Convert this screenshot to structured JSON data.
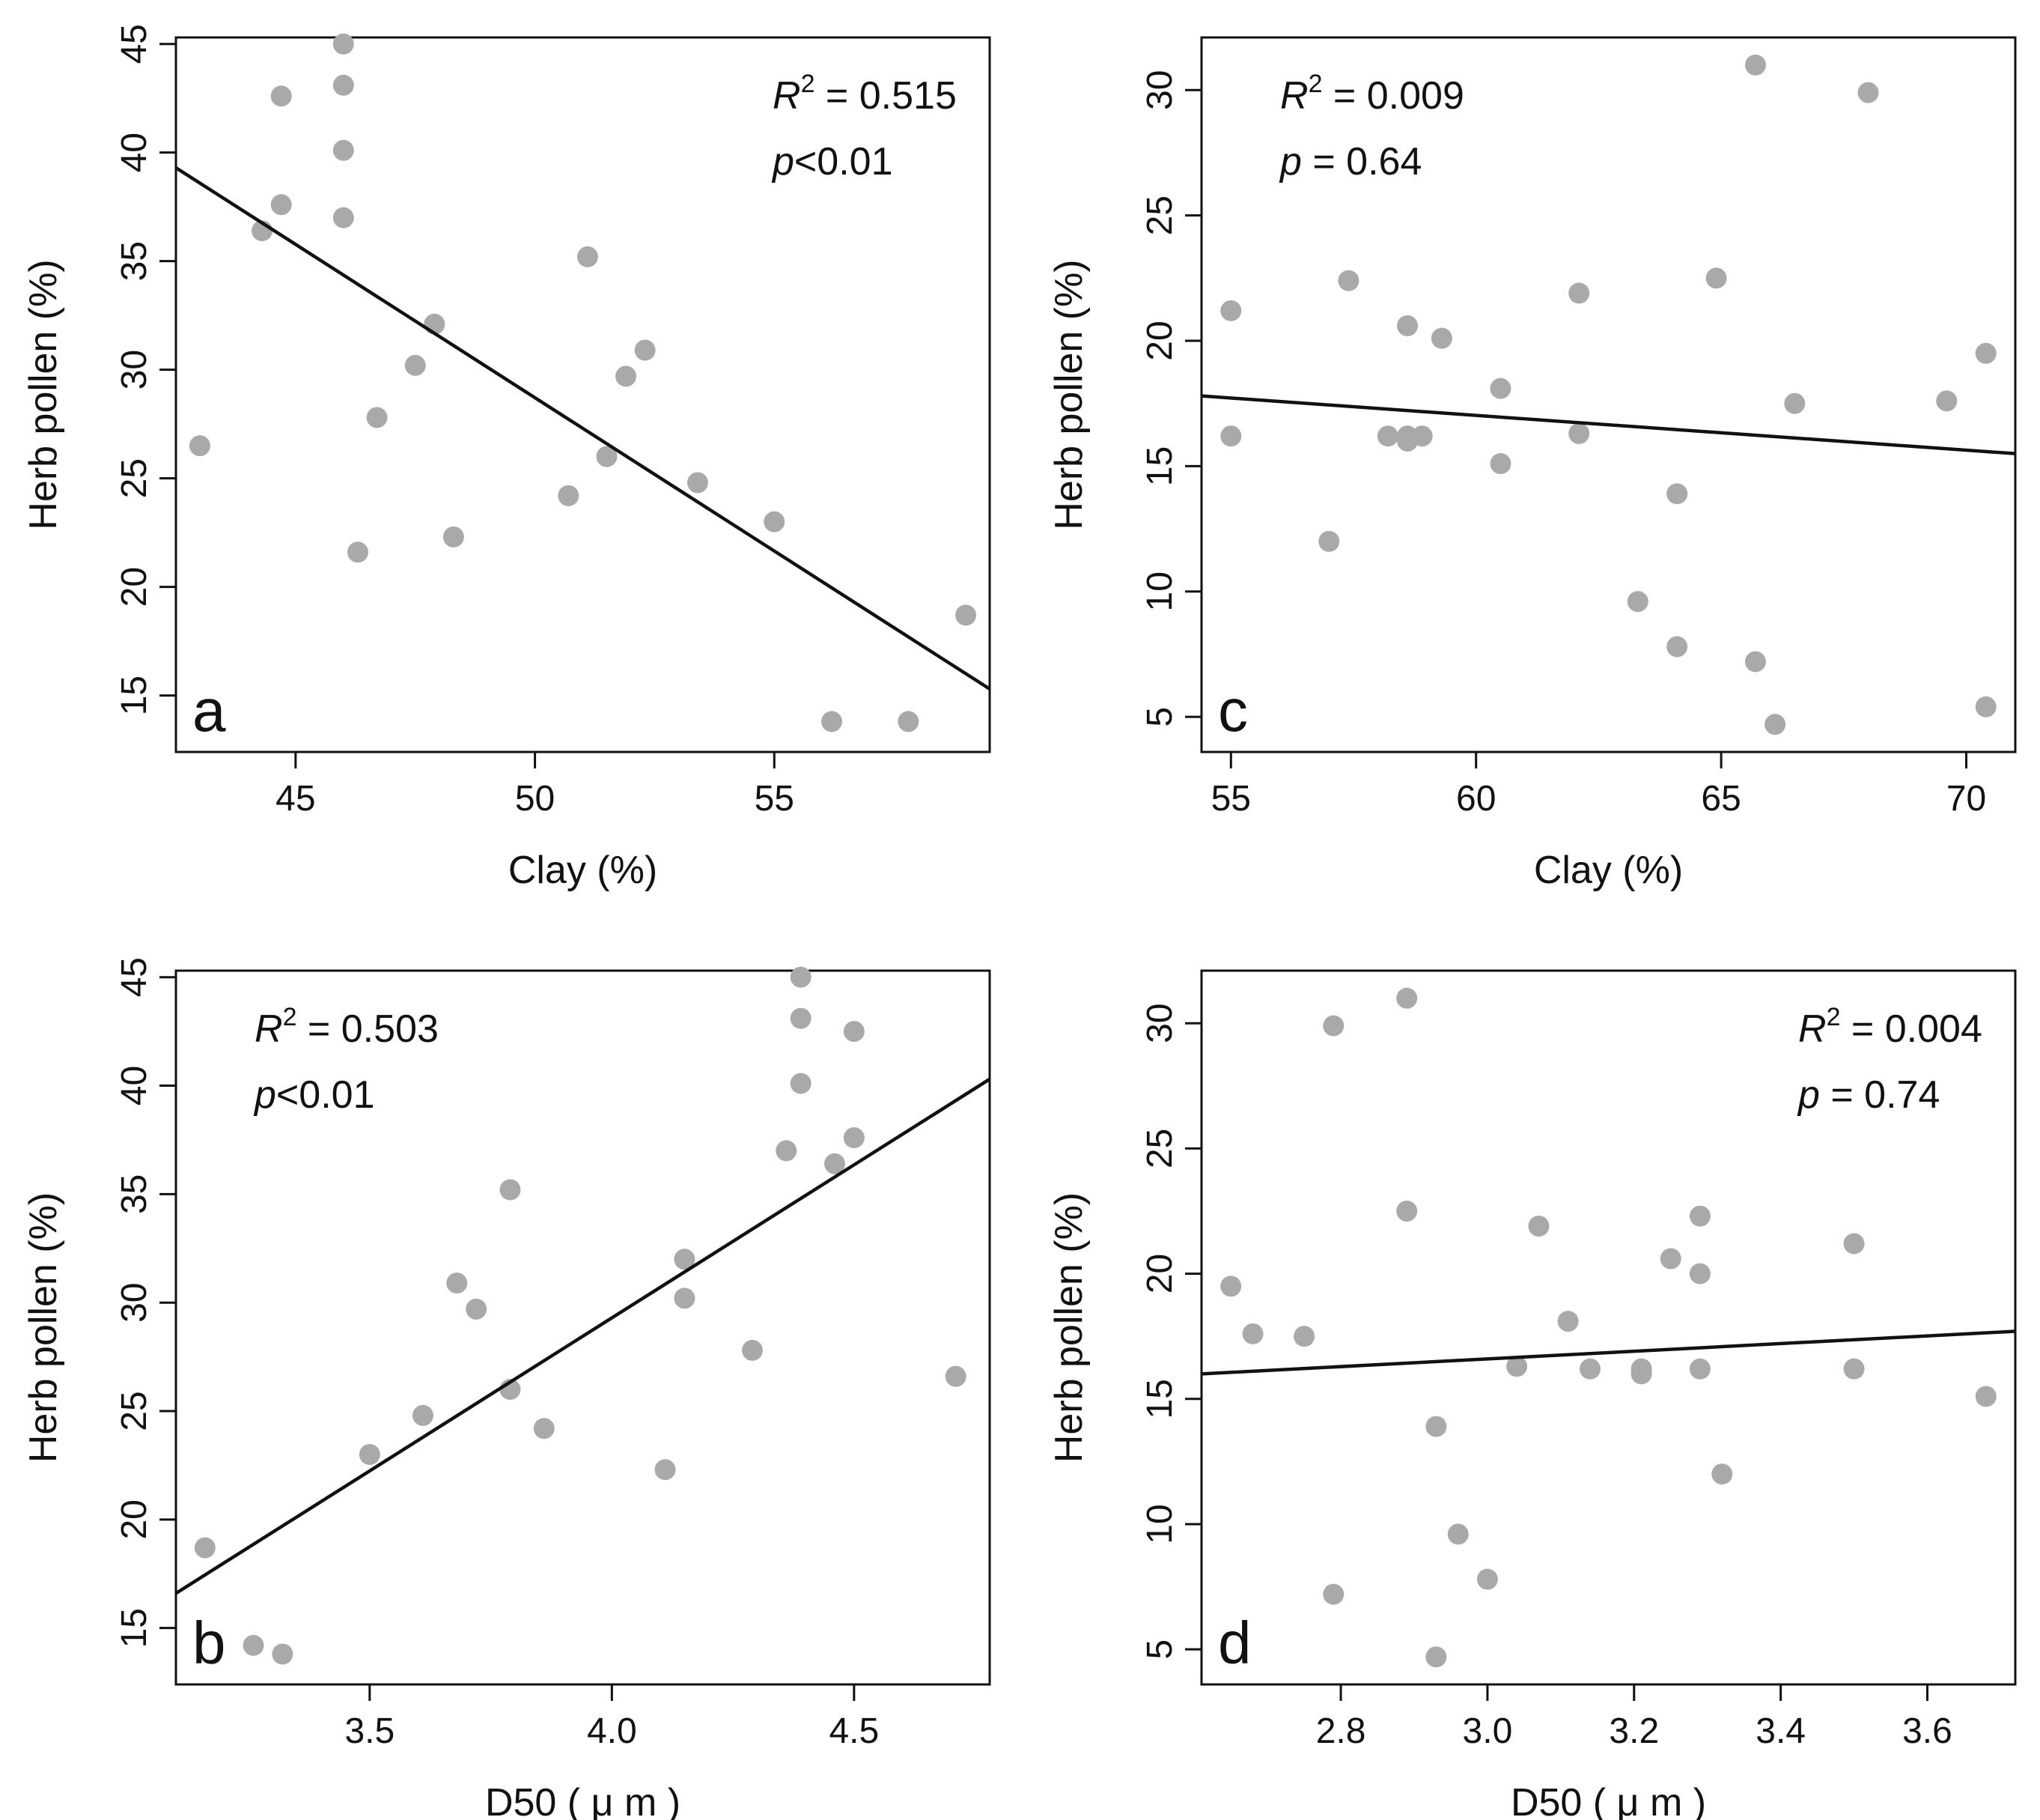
{
  "chart_data": [
    {
      "id": "a",
      "type": "scatter",
      "panel_label": "a",
      "xlabel": "Clay (%)",
      "ylabel": "Herb pollen (%)",
      "xlim": [
        42.5,
        59.5
      ],
      "ylim": [
        12.4,
        45.3
      ],
      "xticks": [
        45,
        50,
        55
      ],
      "yticks": [
        15,
        20,
        25,
        30,
        35,
        40,
        45
      ],
      "xtick_labels": [
        "45",
        "50",
        "55"
      ],
      "ytick_labels": [
        "15",
        "20",
        "25",
        "30",
        "35",
        "40",
        "45"
      ],
      "stats": {
        "r2_symbol": "R",
        "r2_sup": "2",
        "r2_eq": " = ",
        "r2_value": "0.515",
        "p_symbol": "p",
        "p_text": "<0.01"
      },
      "stats_placement": "top-right",
      "regression": {
        "x": [
          42.5,
          59.5
        ],
        "y": [
          39.3,
          15.3
        ]
      },
      "points": {
        "x": [
          43.0,
          44.3,
          44.7,
          44.7,
          46.0,
          46.0,
          46.0,
          46.0,
          46.3,
          46.7,
          47.5,
          47.9,
          48.3,
          50.7,
          51.1,
          51.5,
          51.9,
          52.3,
          53.4,
          55.0,
          56.2,
          57.8,
          59.0
        ],
        "y": [
          26.5,
          36.4,
          42.6,
          37.6,
          45.0,
          43.1,
          40.1,
          37.0,
          21.6,
          27.8,
          30.2,
          32.1,
          22.3,
          24.2,
          35.2,
          26.0,
          29.7,
          30.9,
          24.8,
          23.0,
          13.8,
          13.8,
          18.7
        ]
      }
    },
    {
      "id": "b",
      "type": "scatter",
      "panel_label": "b",
      "xlabel": "D50 ( μ m )",
      "ylabel": "Herb pollen (%)",
      "xlim": [
        3.1,
        4.78
      ],
      "ylim": [
        12.4,
        45.3
      ],
      "xticks": [
        3.5,
        4.0,
        4.5
      ],
      "yticks": [
        15,
        20,
        25,
        30,
        35,
        40,
        45
      ],
      "xtick_labels": [
        "3.5",
        "4.0",
        "4.5"
      ],
      "ytick_labels": [
        "15",
        "20",
        "25",
        "30",
        "35",
        "40",
        "45"
      ],
      "stats": {
        "r2_symbol": "R",
        "r2_sup": "2",
        "r2_eq": " = ",
        "r2_value": "0.503",
        "p_symbol": "p",
        "p_text": "<0.01"
      },
      "stats_placement": "top-left",
      "regression": {
        "x": [
          3.1,
          4.78
        ],
        "y": [
          16.6,
          40.3
        ]
      },
      "points": {
        "x": [
          3.16,
          3.26,
          3.32,
          3.5,
          3.61,
          3.68,
          3.72,
          3.79,
          3.79,
          3.86,
          4.11,
          4.15,
          4.15,
          4.29,
          4.36,
          4.39,
          4.39,
          4.39,
          4.46,
          4.5,
          4.5,
          4.71
        ],
        "y": [
          18.7,
          14.2,
          13.8,
          23.0,
          24.8,
          30.9,
          29.7,
          35.2,
          26.0,
          24.2,
          22.3,
          32.0,
          30.2,
          27.8,
          37.0,
          45.0,
          43.1,
          40.1,
          36.4,
          42.5,
          37.6,
          26.6
        ]
      }
    },
    {
      "id": "c",
      "type": "scatter",
      "panel_label": "c",
      "xlabel": "Clay (%)",
      "ylabel": "Herb pollen (%)",
      "xlim": [
        54.4,
        71.0
      ],
      "ylim": [
        3.6,
        32.1
      ],
      "xticks": [
        55,
        60,
        65,
        70
      ],
      "yticks": [
        5,
        10,
        15,
        20,
        25,
        30
      ],
      "xtick_labels": [
        "55",
        "60",
        "65",
        "70"
      ],
      "ytick_labels": [
        "5",
        "10",
        "15",
        "20",
        "25",
        "30"
      ],
      "stats": {
        "r2_symbol": "R",
        "r2_sup": "2",
        "r2_eq": " = ",
        "r2_value": "0.009",
        "p_symbol": "p",
        "p_text": " = 0.64"
      },
      "stats_placement": "top-left",
      "regression": {
        "x": [
          54.4,
          71.0
        ],
        "y": [
          17.8,
          15.5
        ]
      },
      "points": {
        "x": [
          55.0,
          55.0,
          57.0,
          57.4,
          58.2,
          58.6,
          58.6,
          58.6,
          58.9,
          59.3,
          60.5,
          60.5,
          62.1,
          62.1,
          63.3,
          64.1,
          64.1,
          64.9,
          65.7,
          65.7,
          66.1,
          66.5,
          68.0,
          69.6,
          70.4,
          70.4
        ],
        "y": [
          21.2,
          16.2,
          12.0,
          22.4,
          16.2,
          20.6,
          16.2,
          16.0,
          16.2,
          20.1,
          18.1,
          15.1,
          21.9,
          16.3,
          9.6,
          13.9,
          7.8,
          22.5,
          31.0,
          7.2,
          4.7,
          17.5,
          29.9,
          17.6,
          19.5,
          5.4
        ]
      }
    },
    {
      "id": "d",
      "type": "scatter",
      "panel_label": "d",
      "xlabel": "D50 ( μ m )",
      "ylabel": "Herb pollen (%)",
      "xlim": [
        2.61,
        3.72
      ],
      "ylim": [
        3.6,
        32.1
      ],
      "xticks": [
        2.8,
        3.0,
        3.2,
        3.4,
        3.6
      ],
      "yticks": [
        5,
        10,
        15,
        20,
        25,
        30
      ],
      "xtick_labels": [
        "2.8",
        "3.0",
        "3.2",
        "3.4",
        "3.6"
      ],
      "ytick_labels": [
        "5",
        "10",
        "15",
        "20",
        "25",
        "30"
      ],
      "stats": {
        "r2_symbol": "R",
        "r2_sup": "2",
        "r2_eq": " = ",
        "r2_value": "0.004",
        "p_symbol": "p",
        "p_text": " = 0.74"
      },
      "stats_placement": "top-right",
      "regression": {
        "x": [
          2.61,
          3.72
        ],
        "y": [
          16.0,
          17.7
        ]
      },
      "points": {
        "x": [
          2.65,
          2.68,
          2.75,
          2.79,
          2.79,
          2.89,
          2.89,
          2.93,
          2.93,
          2.96,
          3.0,
          3.04,
          3.07,
          3.11,
          3.14,
          3.21,
          3.21,
          3.25,
          3.29,
          3.29,
          3.29,
          3.32,
          3.5,
          3.5,
          3.68
        ],
        "y": [
          19.5,
          17.6,
          17.5,
          29.9,
          7.2,
          31.0,
          22.5,
          13.9,
          4.7,
          9.6,
          7.8,
          16.3,
          21.9,
          18.1,
          16.2,
          16.2,
          16.0,
          20.6,
          22.3,
          20.0,
          16.2,
          12.0,
          21.2,
          16.2,
          15.1
        ]
      }
    }
  ]
}
